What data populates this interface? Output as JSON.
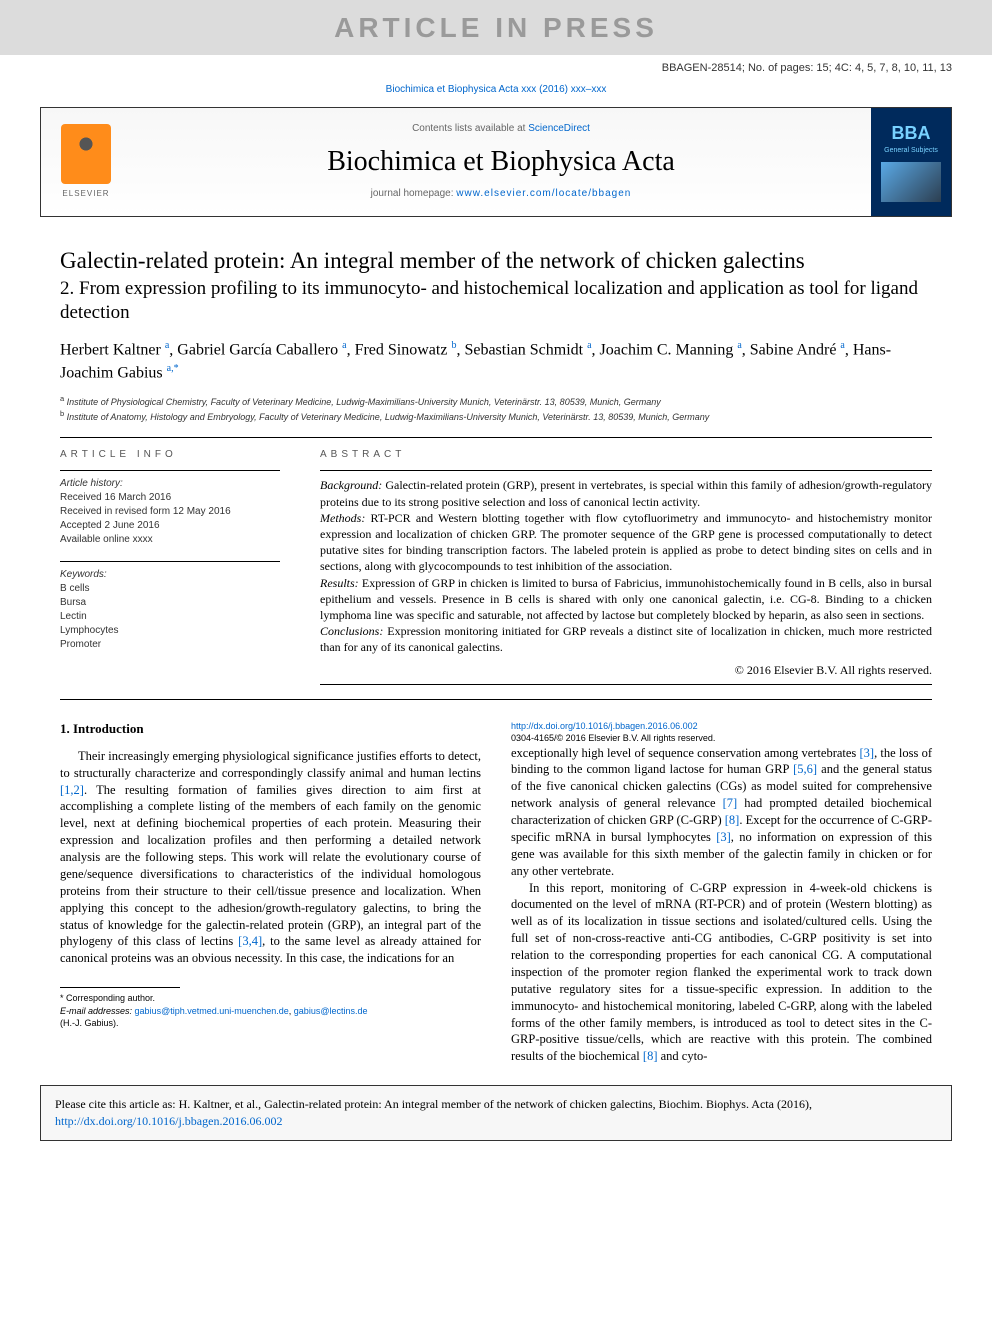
{
  "watermark": "ARTICLE IN PRESS",
  "doc_id": "BBAGEN-28514; No. of pages: 15; 4C: 4, 5, 7, 8, 10, 11, 13",
  "journal_ref_text": "Biochimica et Biophysica Acta xxx (2016) xxx–xxx",
  "banner": {
    "contents_prefix": "Contents lists available at ",
    "contents_link": "ScienceDirect",
    "journal_name": "Biochimica et Biophysica Acta",
    "homepage_prefix": "journal homepage: ",
    "homepage_link": "www.elsevier.com/locate/bbagen",
    "publisher": "ELSEVIER",
    "cover_abbrev": "BBA",
    "cover_sub": "General Subjects"
  },
  "title": "Galectin-related protein: An integral member of the network of chicken galectins",
  "subtitle": "2. From expression profiling to its immunocyto- and histochemical localization and application as tool for ligand detection",
  "authors_html": "Herbert Kaltner <sup>a</sup>, Gabriel García Caballero <sup>a</sup>, Fred Sinowatz <sup>b</sup>, Sebastian Schmidt <sup>a</sup>, Joachim C. Manning <sup>a</sup>, Sabine André <sup>a</sup>, Hans-Joachim Gabius <sup>a,*</sup>",
  "affiliations": [
    {
      "sup": "a",
      "text": "Institute of Physiological Chemistry, Faculty of Veterinary Medicine, Ludwig-Maximilians-University Munich, Veterinärstr. 13, 80539, Munich, Germany"
    },
    {
      "sup": "b",
      "text": "Institute of Anatomy, Histology and Embryology, Faculty of Veterinary Medicine, Ludwig-Maximilians-University Munich, Veterinärstr. 13, 80539, Munich, Germany"
    }
  ],
  "article_info": {
    "heading": "ARTICLE INFO",
    "history_title": "Article history:",
    "history": [
      "Received 16 March 2016",
      "Received in revised form 12 May 2016",
      "Accepted 2 June 2016",
      "Available online xxxx"
    ],
    "keywords_title": "Keywords:",
    "keywords": [
      "B cells",
      "Bursa",
      "Lectin",
      "Lymphocytes",
      "Promoter"
    ]
  },
  "abstract": {
    "heading": "ABSTRACT",
    "background_label": "Background:",
    "background": "Galectin-related protein (GRP), present in vertebrates, is special within this family of adhesion/growth-regulatory proteins due to its strong positive selection and loss of canonical lectin activity.",
    "methods_label": "Methods:",
    "methods": "RT-PCR and Western blotting together with flow cytofluorimetry and immunocyto- and histochemistry monitor expression and localization of chicken GRP. The promoter sequence of the GRP gene is processed computationally to detect putative sites for binding transcription factors. The labeled protein is applied as probe to detect binding sites on cells and in sections, along with glycocompounds to test inhibition of the association.",
    "results_label": "Results:",
    "results": "Expression of GRP in chicken is limited to bursa of Fabricius, immunohistochemically found in B cells, also in bursal epithelium and vessels. Presence in B cells is shared with only one canonical galectin, i.e. CG-8. Binding to a chicken lymphoma line was specific and saturable, not affected by lactose but completely blocked by heparin, as also seen in sections.",
    "conclusions_label": "Conclusions:",
    "conclusions": "Expression monitoring initiated for GRP reveals a distinct site of localization in chicken, much more restricted than for any of its canonical galectins.",
    "copyright": "© 2016 Elsevier B.V. All rights reserved."
  },
  "introduction": {
    "heading": "1. Introduction",
    "para1_a": "Their increasingly emerging physiological significance justifies efforts to detect, to structurally characterize and correspondingly classify animal and human lectins ",
    "cite1": "[1,2]",
    "para1_b": ". The resulting formation of families gives direction to aim first at accomplishing a complete listing of the members of each family on the genomic level, next at defining biochemical properties of each protein. Measuring their expression and localization profiles and then performing a detailed network analysis are the following steps. This work will relate the evolutionary course of gene/sequence diversifications to characteristics of the individual homologous proteins from their structure to their cell/tissue presence and localization. When applying this concept to the adhesion/growth-regulatory galectins, to bring the status of knowledge for the galectin-related protein (GRP), an integral part of the phylogeny of this class of lectins ",
    "cite2": "[3,4]",
    "para1_c": ", to the same level as already attained for canonical proteins was an obvious necessity. In this case, the indications for an",
    "para2_a": "exceptionally high level of sequence conservation among vertebrates ",
    "cite3": "[3]",
    "para2_b": ", the loss of binding to the common ligand lactose for human GRP ",
    "cite4": "[5,6]",
    "para2_c": " and the general status of the five canonical chicken galectins (CGs) as model suited for comprehensive network analysis of general relevance ",
    "cite5": "[7]",
    "para2_d": " had prompted detailed biochemical characterization of chicken GRP (C-GRP) ",
    "cite6": "[8]",
    "para2_e": ". Except for the occurrence of C-GRP-specific mRNA in bursal lymphocytes ",
    "cite7": "[3]",
    "para2_f": ", no information on expression of this gene was available for this sixth member of the galectin family in chicken or for any other vertebrate.",
    "para3_a": "In this report, monitoring of C-GRP expression in 4-week-old chickens is documented on the level of mRNA (RT-PCR) and of protein (Western blotting) as well as of its localization in tissue sections and isolated/cultured cells. Using the full set of non-cross-reactive anti-CG antibodies, C-GRP positivity is set into relation to the corresponding properties for each canonical CG. A computational inspection of the promoter region flanked the experimental work to track down putative regulatory sites for a tissue-specific expression. In addition to the immunocyto- and histochemical monitoring, labeled C-GRP, along with the labeled forms of the other family members, is introduced as tool to detect sites in the C-GRP-positive tissue/cells, which are reactive with this protein. The combined results of the biochemical ",
    "cite8": "[8]",
    "para3_b": " and cyto-"
  },
  "footnotes": {
    "corr": "* Corresponding author.",
    "email_label": "E-mail addresses:",
    "email1": "gabius@tiph.vetmed.uni-muenchen.de",
    "email2": "gabius@lectins.de",
    "email_person": "(H.-J. Gabius)."
  },
  "doi": {
    "link": "http://dx.doi.org/10.1016/j.bbagen.2016.06.002",
    "issn_line": "0304-4165/© 2016 Elsevier B.V. All rights reserved."
  },
  "cite_box": {
    "text_a": "Please cite this article as: H. Kaltner, et al., Galectin-related protein: An integral member of the network of chicken galectins, Biochim. Biophys. Acta (2016), ",
    "link": "http://dx.doi.org/10.1016/j.bbagen.2016.06.002"
  },
  "colors": {
    "link": "#0066cc",
    "watermark_bg": "#dcdcdc",
    "watermark_fg": "#9a9a9a"
  }
}
